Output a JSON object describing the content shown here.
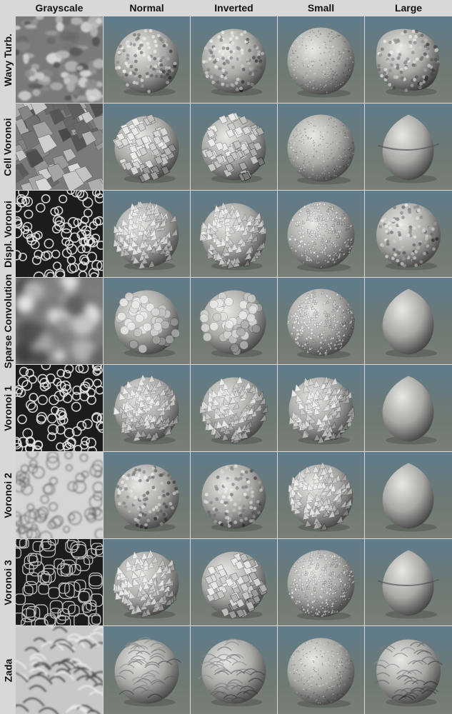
{
  "columns": [
    {
      "key": "grayscale",
      "label": "Grayscale"
    },
    {
      "key": "normal",
      "label": "Normal"
    },
    {
      "key": "inverted",
      "label": "Inverted"
    },
    {
      "key": "small",
      "label": "Small"
    },
    {
      "key": "large",
      "label": "Large"
    }
  ],
  "rows": [
    {
      "label": "Wavy Turb.",
      "pattern": "turbulence",
      "shapes": [
        "rough",
        "rough",
        "fine",
        "blob"
      ]
    },
    {
      "label": "Cell Voronoi",
      "pattern": "cells",
      "shapes": [
        "faceted",
        "faceted",
        "fine",
        "split"
      ]
    },
    {
      "label": "Displ. Voronoi",
      "pattern": "dots",
      "shapes": [
        "spiky",
        "spiky",
        "finespiky",
        "rough"
      ]
    },
    {
      "label": "Sparse Convolution",
      "pattern": "blurry",
      "shapes": [
        "bumpy",
        "bumpy",
        "finespiky",
        "smooth"
      ]
    },
    {
      "label": "Voronoi 1",
      "pattern": "dots",
      "shapes": [
        "spiky",
        "spiky",
        "spiky",
        "smooth"
      ]
    },
    {
      "label": "Voronoi 2",
      "pattern": "light",
      "shapes": [
        "rough",
        "rough",
        "spiky",
        "smooth"
      ]
    },
    {
      "label": "Voronoi 3",
      "pattern": "darkcells",
      "shapes": [
        "spiky",
        "faceted",
        "finespiky",
        "split"
      ]
    },
    {
      "label": "Zada",
      "pattern": "swirl",
      "shapes": [
        "swirl",
        "swirl",
        "fine",
        "swirl"
      ]
    }
  ],
  "colors": {
    "sky_top": "#5f7b8c",
    "sky_bottom": "#6f7a72",
    "floor": "#7a7f78",
    "sphere_light": "#e8e8e4",
    "sphere_dark": "#3a3a3a",
    "label_text": "#111111",
    "background": "#d8d8d8"
  }
}
